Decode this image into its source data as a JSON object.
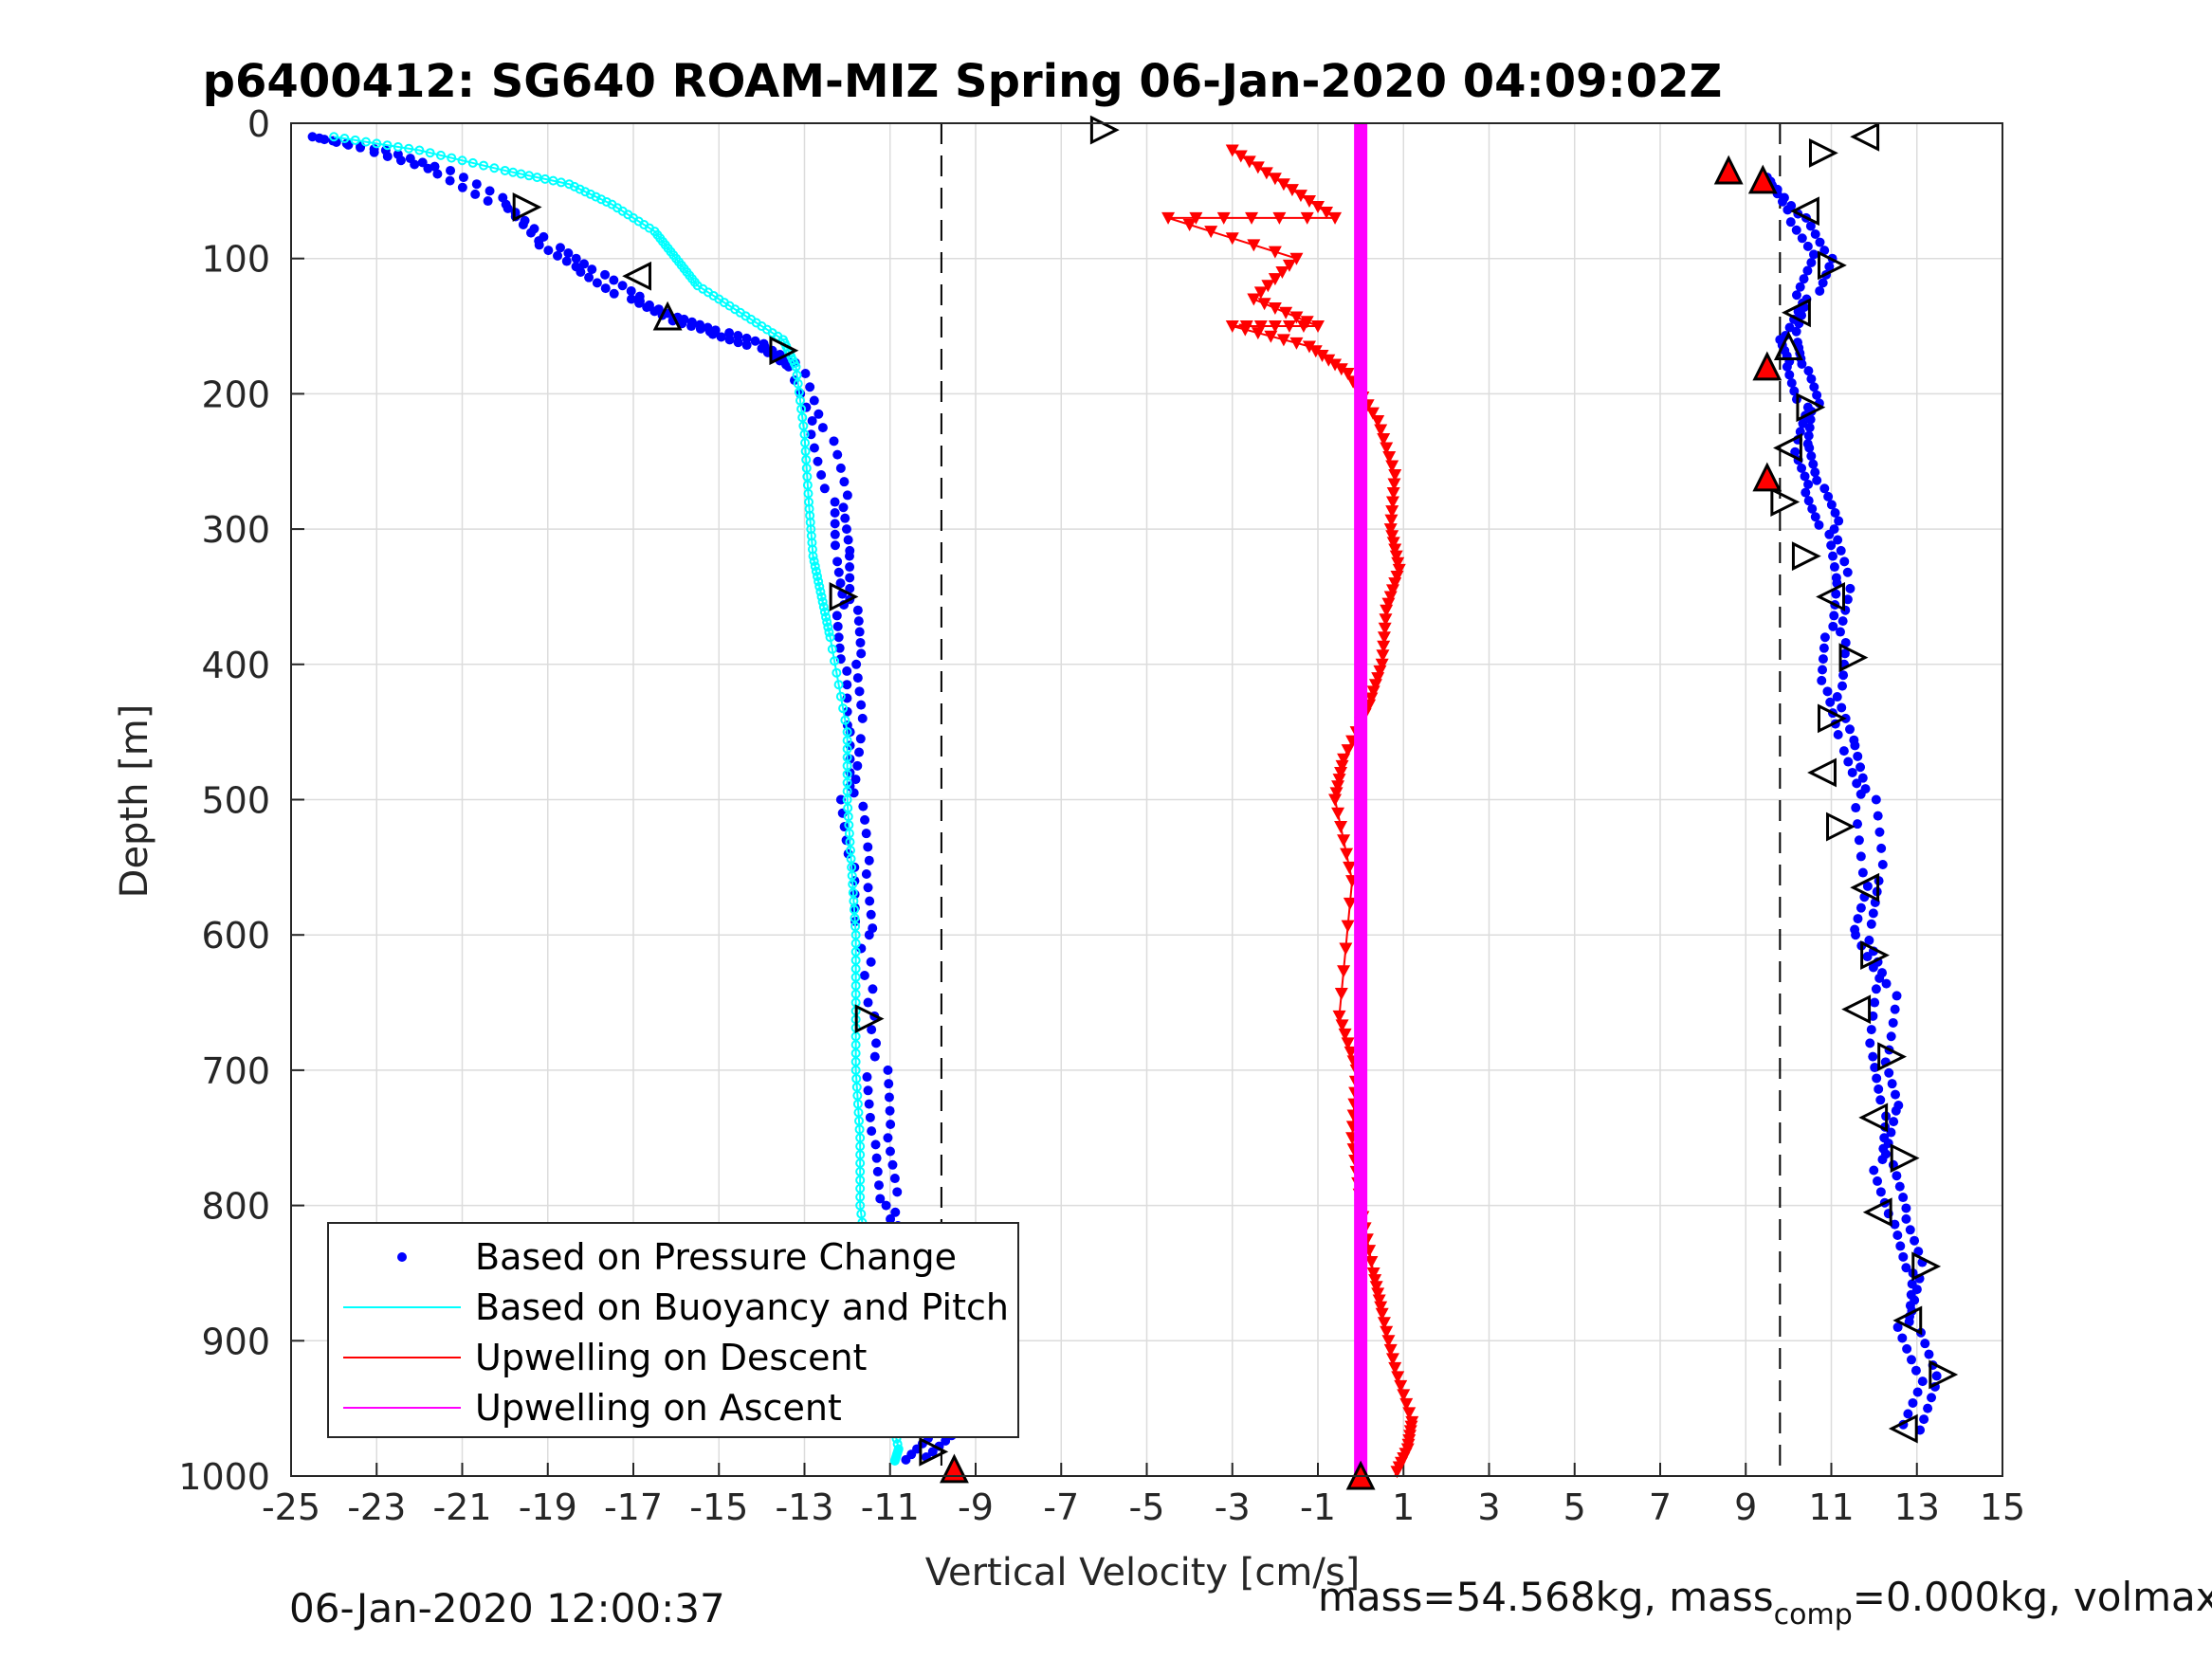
{
  "chart_data": {
    "type": "scatter",
    "title": "p6400412: SG640 ROAM-MIZ Spring 06-Jan-2020 04:09:02Z",
    "xlabel": "Vertical Velocity [cm/s]",
    "ylabel": "Depth [m]",
    "xlim": [
      -25,
      15
    ],
    "ylim": [
      0,
      1000
    ],
    "y_reversed": true,
    "grid": true,
    "xticks": [
      -25,
      -23,
      -21,
      -19,
      -17,
      -15,
      -13,
      -11,
      -9,
      -7,
      -5,
      -3,
      -1,
      1,
      3,
      5,
      7,
      9,
      11,
      13,
      15
    ],
    "yticks": [
      0,
      100,
      200,
      300,
      400,
      500,
      600,
      700,
      800,
      900,
      1000
    ],
    "reference_lines_x": [
      -9.8,
      9.8
    ],
    "legend_position": "bottom-left",
    "series": [
      {
        "name": "Based on Pressure Change",
        "color": "#0000ff",
        "marker": "dot",
        "descent": {
          "x": [
            -24.5,
            -23.0,
            -21.5,
            -20.0,
            -19.0,
            -18.0,
            -17.0,
            -16.0,
            -15.0,
            -14.0,
            -13.2,
            -12.6,
            -12.2,
            -12.1,
            -12.0,
            -11.9,
            -11.8,
            -11.9,
            -11.7,
            -11.6,
            -11.3,
            -11.2,
            -11.0,
            -10.6,
            -10.2,
            -9.9,
            -9.8,
            -10.5
          ],
          "y": [
            10,
            20,
            35,
            60,
            90,
            110,
            130,
            145,
            155,
            165,
            180,
            230,
            280,
            320,
            360,
            400,
            450,
            500,
            550,
            600,
            700,
            750,
            800,
            850,
            900,
            950,
            970,
            990
          ]
        },
        "ascent": {
          "x": [
            9.5,
            10.2,
            10.8,
            10.4,
            10.0,
            10.2,
            10.5,
            10.3,
            10.6,
            11.0,
            11.3,
            11.1,
            11.0,
            11.4,
            11.8,
            12.0,
            11.7,
            12.3,
            12.1,
            12.4,
            12.2,
            12.6,
            13.0,
            12.8,
            13.3,
            12.8
          ],
          "y": [
            40,
            70,
            100,
            130,
            160,
            180,
            210,
            240,
            270,
            300,
            340,
            380,
            420,
            460,
            500,
            560,
            600,
            640,
            690,
            730,
            770,
            810,
            850,
            890,
            930,
            970
          ]
        }
      },
      {
        "name": "Based on Buoyancy and Pitch",
        "color": "#00ffff",
        "marker": "circle-line",
        "x": [
          -24.0,
          -22.0,
          -20.0,
          -18.5,
          -17.5,
          -16.5,
          -16.0,
          -15.5,
          -14.5,
          -13.5,
          -13.2,
          -13.0,
          -12.9,
          -12.8,
          -12.6,
          -12.4,
          -12.0,
          -12.0,
          -11.9,
          -11.8,
          -11.8,
          -11.8,
          -11.7,
          -11.7,
          -11.5,
          -11.3,
          -11.0,
          -10.8,
          -10.9
        ],
        "y": [
          10,
          20,
          35,
          45,
          60,
          80,
          100,
          120,
          140,
          160,
          180,
          230,
          280,
          320,
          350,
          380,
          450,
          500,
          550,
          600,
          650,
          700,
          750,
          800,
          850,
          900,
          950,
          980,
          990
        ]
      },
      {
        "name": "Upwelling on Descent",
        "color": "#ff0000",
        "marker": "triangle-down-line",
        "x": [
          -3.0,
          -1.8,
          -0.6,
          -4.5,
          -1.5,
          -2.5,
          -1.0,
          -3.0,
          -1.2,
          -0.3,
          0.4,
          0.8,
          0.7,
          0.9,
          0.6,
          0.5,
          0.2,
          -0.4,
          -0.6,
          -0.2,
          -0.5,
          -0.1,
          -0.2,
          0.0,
          0.3,
          0.5,
          0.8,
          1.2,
          1.1,
          0.8
        ],
        "y": [
          20,
          45,
          70,
          70,
          100,
          130,
          150,
          150,
          165,
          185,
          220,
          260,
          300,
          330,
          360,
          400,
          430,
          470,
          500,
          560,
          660,
          700,
          750,
          800,
          850,
          880,
          920,
          960,
          980,
          1000
        ]
      },
      {
        "name": "Upwelling on Ascent",
        "color": "#ff00ff",
        "marker": "line",
        "x": [
          0.0,
          0.0
        ],
        "y": [
          0,
          1000
        ]
      }
    ],
    "annotations": {
      "open_triangles": [
        {
          "x": -6.0,
          "y": 5,
          "dir": "right"
        },
        {
          "x": -19.5,
          "y": 62,
          "dir": "right"
        },
        {
          "x": -16.9,
          "y": 113,
          "dir": "left"
        },
        {
          "x": -16.2,
          "y": 143,
          "dir": "up"
        },
        {
          "x": -13.5,
          "y": 168,
          "dir": "right"
        },
        {
          "x": -12.1,
          "y": 350,
          "dir": "right"
        },
        {
          "x": -11.5,
          "y": 662,
          "dir": "right"
        },
        {
          "x": -10.0,
          "y": 982,
          "dir": "right"
        },
        {
          "x": 11.8,
          "y": 10,
          "dir": "left"
        },
        {
          "x": 10.8,
          "y": 22,
          "dir": "right"
        },
        {
          "x": 10.4,
          "y": 65,
          "dir": "left"
        },
        {
          "x": 11.0,
          "y": 105,
          "dir": "right"
        },
        {
          "x": 10.2,
          "y": 140,
          "dir": "left"
        },
        {
          "x": 10.0,
          "y": 165,
          "dir": "up"
        },
        {
          "x": 10.5,
          "y": 210,
          "dir": "right"
        },
        {
          "x": 10.0,
          "y": 240,
          "dir": "left"
        },
        {
          "x": 9.9,
          "y": 280,
          "dir": "right"
        },
        {
          "x": 10.4,
          "y": 320,
          "dir": "right"
        },
        {
          "x": 11.0,
          "y": 350,
          "dir": "left"
        },
        {
          "x": 11.5,
          "y": 395,
          "dir": "right"
        },
        {
          "x": 11.0,
          "y": 440,
          "dir": "right"
        },
        {
          "x": 10.8,
          "y": 480,
          "dir": "left"
        },
        {
          "x": 11.2,
          "y": 520,
          "dir": "right"
        },
        {
          "x": 11.8,
          "y": 565,
          "dir": "left"
        },
        {
          "x": 12.0,
          "y": 615,
          "dir": "right"
        },
        {
          "x": 11.6,
          "y": 655,
          "dir": "left"
        },
        {
          "x": 12.4,
          "y": 690,
          "dir": "right"
        },
        {
          "x": 12.0,
          "y": 735,
          "dir": "left"
        },
        {
          "x": 12.7,
          "y": 765,
          "dir": "right"
        },
        {
          "x": 12.1,
          "y": 805,
          "dir": "left"
        },
        {
          "x": 13.2,
          "y": 845,
          "dir": "right"
        },
        {
          "x": 12.8,
          "y": 885,
          "dir": "left"
        },
        {
          "x": 13.6,
          "y": 925,
          "dir": "right"
        },
        {
          "x": 12.7,
          "y": 965,
          "dir": "left"
        }
      ],
      "red_triangles": [
        {
          "x": 8.6,
          "y": 35
        },
        {
          "x": 9.4,
          "y": 42
        },
        {
          "x": 9.5,
          "y": 180
        },
        {
          "x": 9.5,
          "y": 262
        },
        {
          "x": -9.5,
          "y": 995
        },
        {
          "x": 0.0,
          "y": 1000
        }
      ]
    }
  },
  "footer": {
    "datetime": "06-Jan-2020 12:00:37",
    "mass_text": "mass=54.568kg, mass",
    "mass_sub": "comp",
    "mass_rest": "=0.000kg, volmax"
  }
}
